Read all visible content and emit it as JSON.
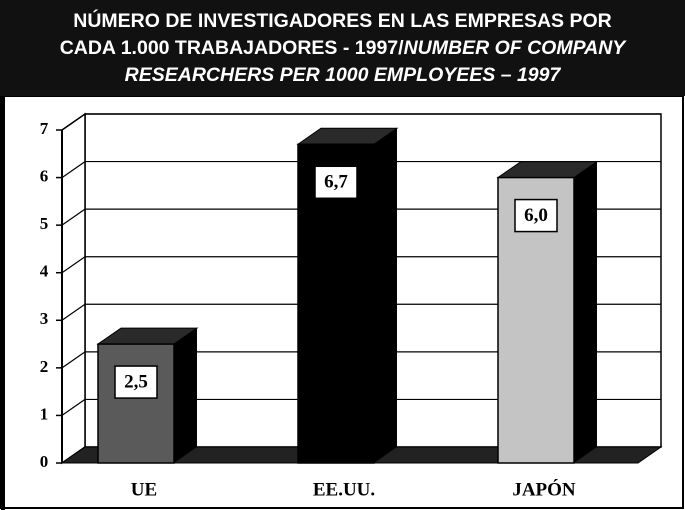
{
  "chart_data": {
    "type": "bar3d",
    "title": "NÚMERO DE INVESTIGADORES EN LAS EMPRESAS POR CADA 1.000 TRABAJADORES - 1997/",
    "subtitle": "NUMBER OF COMPANY RESEARCHERS PER 1000 EMPLOYEES – 1997",
    "categories": [
      "UE",
      "EE.UU.",
      "JAPÓN"
    ],
    "values": [
      2.5,
      6.7,
      6.0
    ],
    "value_labels": [
      "2,5",
      "6,7",
      "6,0"
    ],
    "colors": [
      "#5a5a5a",
      "#000000",
      "#c4c4c4"
    ],
    "ylim": [
      0,
      7
    ],
    "yticks": [
      0,
      1,
      2,
      3,
      4,
      5,
      6,
      7
    ],
    "grid": true
  }
}
